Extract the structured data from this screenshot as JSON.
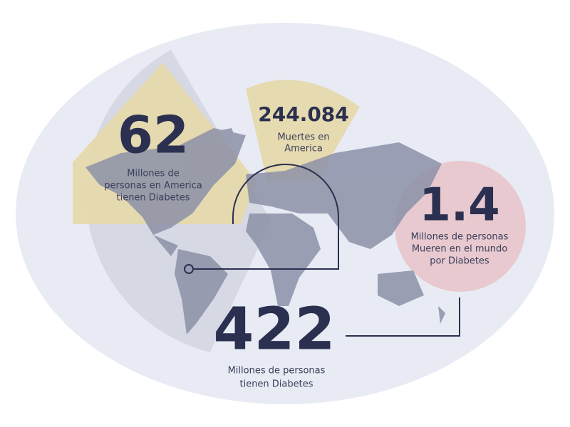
{
  "stats": [
    {
      "value": "62",
      "label": [
        "Millones de",
        "personas en America",
        "tienen Diabetes"
      ]
    },
    {
      "value": "244.084",
      "label": [
        "Muertes en",
        "America"
      ]
    },
    {
      "value": "1.4",
      "label": [
        "Millones de personas",
        "Mueren en el mundo",
        "por Diabetes"
      ]
    },
    {
      "value": "422",
      "label": [
        "Millones de personas",
        "tienen Diabetes"
      ]
    }
  ]
}
